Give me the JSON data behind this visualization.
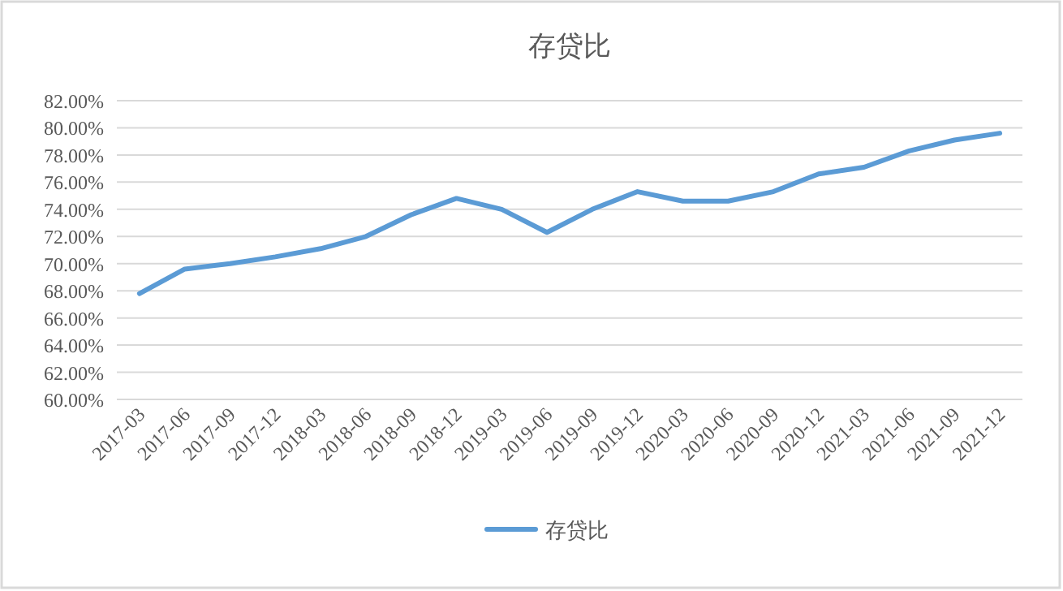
{
  "chart_data": {
    "type": "line",
    "title": "存贷比",
    "categories": [
      "2017-03",
      "2017-06",
      "2017-09",
      "2017-12",
      "2018-03",
      "2018-06",
      "2018-09",
      "2018-12",
      "2019-03",
      "2019-06",
      "2019-09",
      "2019-12",
      "2020-03",
      "2020-06",
      "2020-09",
      "2020-12",
      "2021-03",
      "2021-06",
      "2021-09",
      "2021-12"
    ],
    "series": [
      {
        "name": "存贷比",
        "color": "#5b9bd5",
        "values": [
          67.8,
          69.6,
          70.0,
          70.5,
          71.1,
          72.0,
          73.6,
          74.8,
          74.0,
          72.3,
          74.0,
          75.3,
          74.6,
          74.6,
          75.3,
          76.6,
          77.1,
          78.3,
          79.1,
          79.6
        ]
      }
    ],
    "ylim": [
      60,
      82
    ],
    "yticks": [
      {
        "value": 60,
        "label": "60.00%"
      },
      {
        "value": 62,
        "label": "62.00%"
      },
      {
        "value": 64,
        "label": "64.00%"
      },
      {
        "value": 66,
        "label": "66.00%"
      },
      {
        "value": 68,
        "label": "68.00%"
      },
      {
        "value": 70,
        "label": "70.00%"
      },
      {
        "value": 72,
        "label": "72.00%"
      },
      {
        "value": 74,
        "label": "74.00%"
      },
      {
        "value": 76,
        "label": "76.00%"
      },
      {
        "value": 78,
        "label": "78.00%"
      },
      {
        "value": 80,
        "label": "80.00%"
      },
      {
        "value": 82,
        "label": "82.00%"
      }
    ],
    "grid": "y",
    "legend": "bottom",
    "marker": "none",
    "line_style": "solid"
  }
}
